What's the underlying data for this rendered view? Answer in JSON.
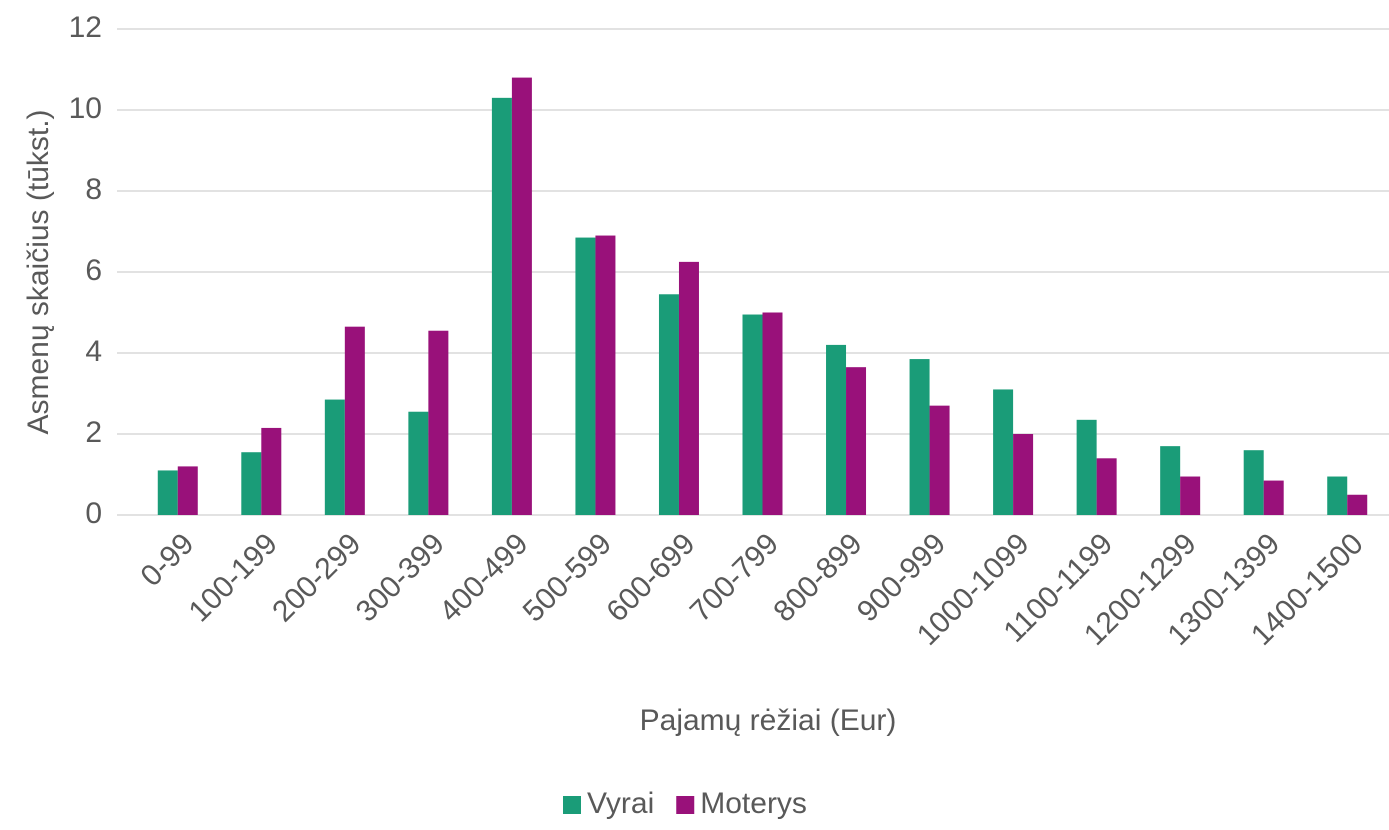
{
  "chart_data": {
    "type": "bar",
    "y_label": "Asmenų skaičius (tūkst.)",
    "x_label": "Pajamų rėžiai (Eur)",
    "categories": [
      "0-99",
      "100-199",
      "200-299",
      "300-399",
      "400-499",
      "500-599",
      "600-699",
      "700-799",
      "800-899",
      "900-999",
      "1000-1099",
      "1100-1199",
      "1200-1299",
      "1300-1399",
      "1400-1500"
    ],
    "series": [
      {
        "name": "Vyrai",
        "color": "#1a9c78",
        "values": [
          1.1,
          1.55,
          2.85,
          2.55,
          10.3,
          6.85,
          5.45,
          4.95,
          4.2,
          3.85,
          3.1,
          2.35,
          1.7,
          1.6,
          0.95
        ]
      },
      {
        "name": "Moterys",
        "color": "#99117a",
        "values": [
          1.2,
          2.15,
          4.65,
          4.55,
          10.8,
          6.9,
          6.25,
          5.0,
          3.65,
          2.7,
          2.0,
          1.4,
          0.95,
          0.85,
          0.5
        ]
      }
    ],
    "ylim": [
      0,
      12
    ],
    "yticks": [
      0,
      2,
      4,
      6,
      8,
      10,
      12
    ],
    "grid": true,
    "legend": "bottom"
  }
}
